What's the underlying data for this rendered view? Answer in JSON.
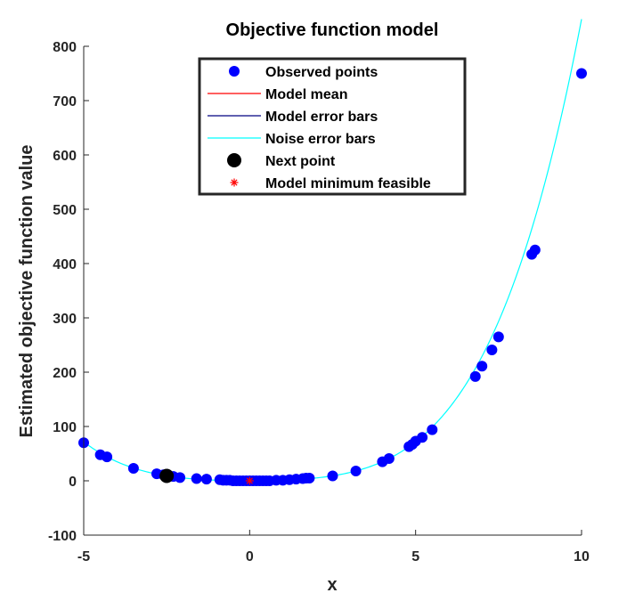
{
  "chart_data": {
    "type": "scatter",
    "title": "Objective function model",
    "xlabel": "x",
    "ylabel": "Estimated objective function value",
    "xlim": [
      -5,
      10
    ],
    "ylim": [
      -100,
      800
    ],
    "xticks": [
      -5,
      0,
      5,
      10
    ],
    "yticks": [
      -100,
      0,
      100,
      200,
      300,
      400,
      500,
      600,
      700,
      800
    ],
    "grid": false,
    "legend_position": "top-center",
    "legend": [
      {
        "label": "Observed points",
        "marker": "dot",
        "color": "#0000ff"
      },
      {
        "label": "Model mean",
        "marker": "line",
        "color": "#ff0000"
      },
      {
        "label": "Model error bars",
        "marker": "line",
        "color": "#000080"
      },
      {
        "label": "Noise error bars",
        "marker": "line",
        "color": "#00ffff"
      },
      {
        "label": "Next point",
        "marker": "dot",
        "color": "#000000"
      },
      {
        "label": "Model minimum feasible",
        "marker": "asterisk",
        "color": "#ff0000"
      }
    ],
    "model_curve": {
      "name": "Noise error bars",
      "color": "#00ffff",
      "formula_coeffs": {
        "a4": 0.075,
        "a2": 1.0,
        "a0": 0
      }
    },
    "observed_points": {
      "x": [
        -5.0,
        -4.5,
        -4.3,
        -3.5,
        -2.8,
        -2.6,
        -2.3,
        -2.1,
        -1.6,
        -1.3,
        -0.9,
        -0.8,
        -0.7,
        -0.6,
        -0.5,
        -0.4,
        -0.3,
        -0.2,
        -0.1,
        0.0,
        0.1,
        0.2,
        0.3,
        0.4,
        0.5,
        0.6,
        0.8,
        1.0,
        1.2,
        1.4,
        1.6,
        1.7,
        1.8,
        2.5,
        3.2,
        4.0,
        4.2,
        4.8,
        4.9,
        5.0,
        5.2,
        5.5,
        6.8,
        7.0,
        7.3,
        7.5,
        8.5,
        8.6,
        10.0
      ],
      "y": [
        70,
        48,
        44,
        23,
        13,
        11,
        8,
        6,
        4,
        3,
        2,
        1,
        1,
        1,
        0,
        0,
        0,
        0,
        0,
        0,
        0,
        0,
        0,
        0,
        0,
        0,
        1,
        1,
        2,
        3,
        4,
        5,
        5,
        9,
        18,
        35,
        41,
        63,
        67,
        73,
        80,
        94,
        192,
        211,
        241,
        265,
        417,
        425,
        750
      ]
    },
    "next_point": {
      "x": -2.5,
      "y": 9
    },
    "model_minimum": {
      "x": 0,
      "y": 0
    }
  }
}
